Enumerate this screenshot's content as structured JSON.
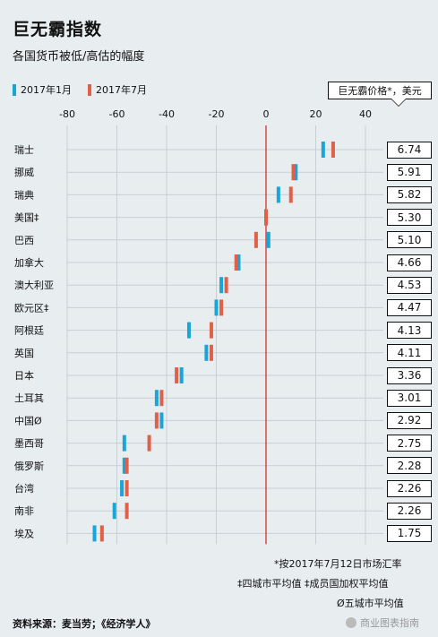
{
  "title": "巨无霸指数",
  "subtitle": "各国货币被低/高估的幅度",
  "price_header": "巨无霸价格*，美元",
  "colors": {
    "jan": "#1aa5d8",
    "jul": "#e0604a",
    "zero_line": "#d0201c"
  },
  "chart_data": {
    "type": "dot",
    "xlim": [
      -80,
      40
    ],
    "x_ticks": [
      -80,
      -60,
      -40,
      -20,
      0,
      20,
      40
    ],
    "legend": {
      "placement": "top-left"
    },
    "series": [
      {
        "name": "2017年1月",
        "color": "#1aa5d8"
      },
      {
        "name": "2017年7月",
        "color": "#e0604a"
      }
    ],
    "rows": [
      {
        "country": "瑞士",
        "jan": 23,
        "jul": 27,
        "price": "6.74"
      },
      {
        "country": "挪威",
        "jan": 12,
        "jul": 11,
        "price": "5.91"
      },
      {
        "country": "瑞典",
        "jan": 5,
        "jul": 10,
        "price": "5.82"
      },
      {
        "country": "美国‡",
        "jan": 0,
        "jul": 0,
        "price": "5.30"
      },
      {
        "country": "巴西",
        "jan": 1,
        "jul": -4,
        "price": "5.10"
      },
      {
        "country": "加拿大",
        "jan": -11,
        "jul": -12,
        "price": "4.66"
      },
      {
        "country": "澳大利亚",
        "jan": -18,
        "jul": -16,
        "price": "4.53"
      },
      {
        "country": "欧元区‡",
        "jan": -20,
        "jul": -18,
        "price": "4.47"
      },
      {
        "country": "阿根廷",
        "jan": -31,
        "jul": -22,
        "price": "4.13"
      },
      {
        "country": "英国",
        "jan": -24,
        "jul": -22,
        "price": "4.11"
      },
      {
        "country": "日本",
        "jan": -34,
        "jul": -36,
        "price": "3.36"
      },
      {
        "country": "土耳其",
        "jan": -44,
        "jul": -42,
        "price": "3.01"
      },
      {
        "country": "中国Ø",
        "jan": -42,
        "jul": -44,
        "price": "2.92"
      },
      {
        "country": "墨西哥",
        "jan": -57,
        "jul": -47,
        "price": "2.75"
      },
      {
        "country": "俄罗斯",
        "jan": -57,
        "jul": -56,
        "price": "2.28"
      },
      {
        "country": "台湾",
        "jan": -58,
        "jul": -56,
        "price": "2.26"
      },
      {
        "country": "南非",
        "jan": -61,
        "jul": -56,
        "price": "2.26"
      },
      {
        "country": "埃及",
        "jan": -69,
        "jul": -66,
        "price": "1.75"
      }
    ]
  },
  "footnotes": {
    "star": "*按2017年7月12日市场汇率",
    "dagger": "‡四城市平均值 ‡成员国加权平均值",
    "oslash": "Ø五城市平均值"
  },
  "source": "资料来源：麦当劳；《经济学人》",
  "watermark": "商业图表指南"
}
